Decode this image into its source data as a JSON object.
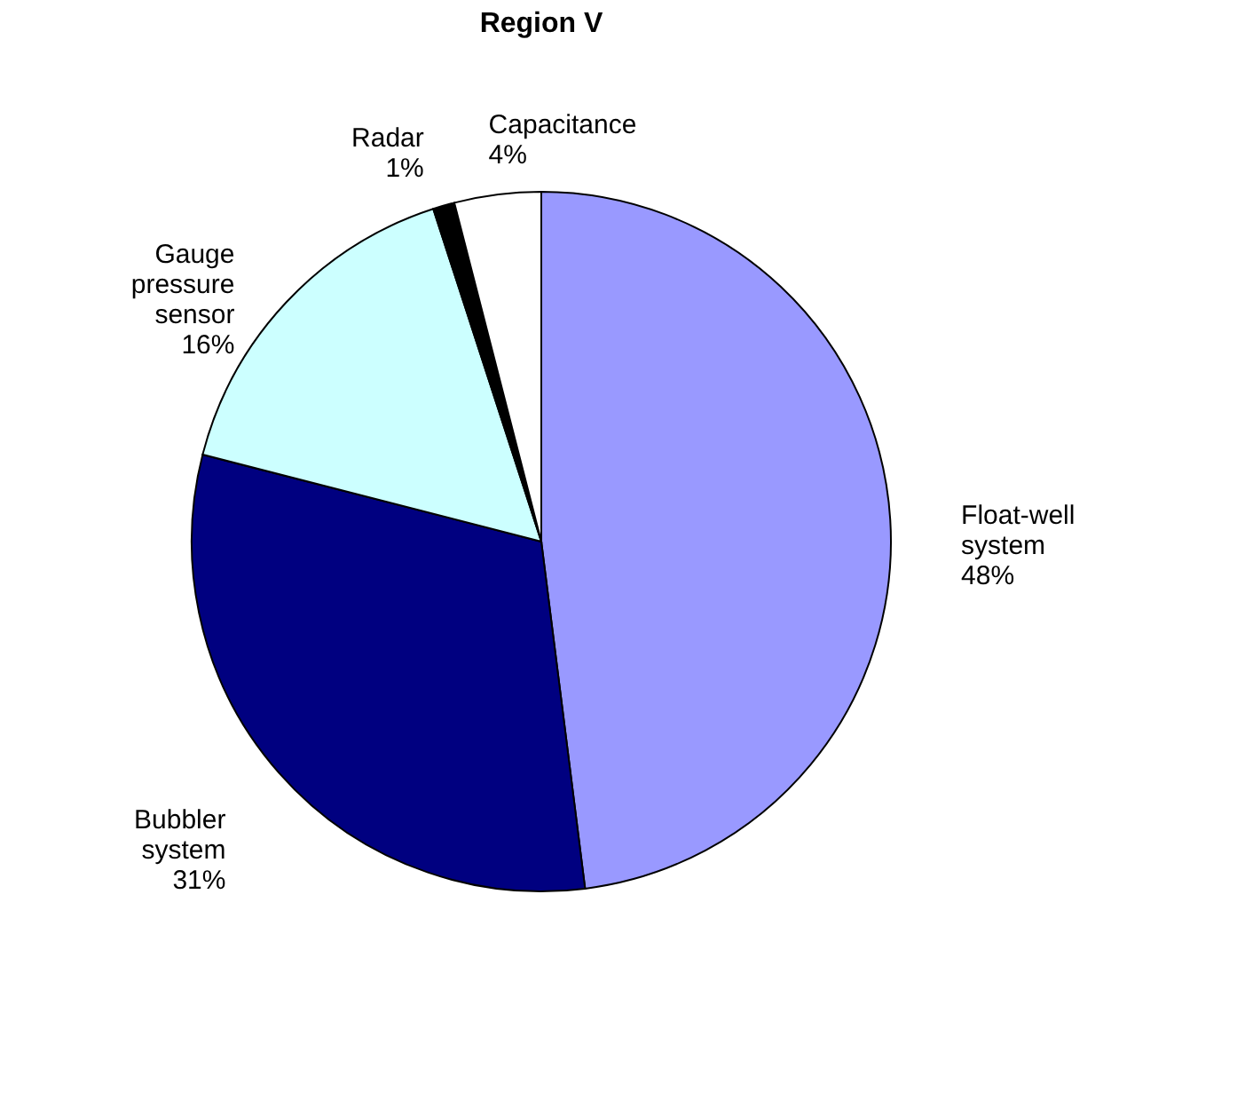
{
  "chart_data": {
    "type": "pie",
    "title": "Region V",
    "categories": [
      "Float-well system",
      "Bubbler system",
      "Gauge pressure sensor",
      "Radar",
      "Capacitance"
    ],
    "values": [
      48,
      31,
      16,
      1,
      4
    ],
    "value_labels": [
      "48%",
      "31%",
      "16%",
      "1%",
      "4%"
    ],
    "colors": [
      "#9999ff",
      "#000080",
      "#ccffff",
      "#000000",
      "#ffffff"
    ],
    "legend": false
  }
}
